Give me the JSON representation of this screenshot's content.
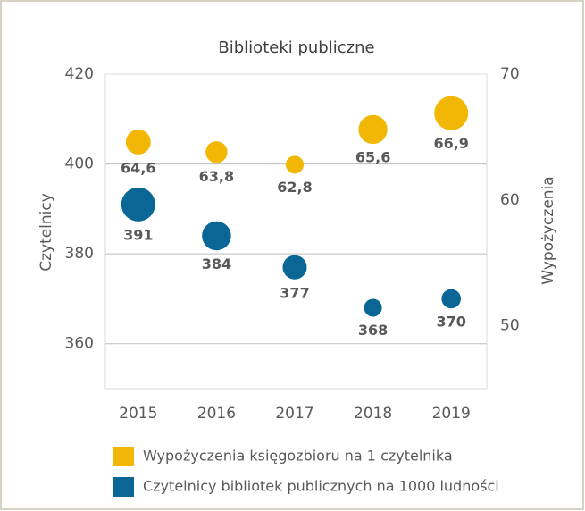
{
  "chart_data": {
    "type": "bubble",
    "title": "Biblioteki publiczne",
    "ylabel": "Czytelnicy",
    "y2label": "Wypożyczenia",
    "categories": [
      "2015",
      "2016",
      "2017",
      "2018",
      "2019"
    ],
    "ylim": [
      350,
      420
    ],
    "yticks": [
      360,
      380,
      400,
      420
    ],
    "y2lim": [
      45,
      70
    ],
    "y2ticks": [
      50,
      60,
      70
    ],
    "grid": true,
    "legend": "bottom",
    "series": [
      {
        "name": "Wypożyczenia księgozbioru na 1 czytelnika",
        "color": "#f2b705",
        "axis": "y2",
        "values": [
          64.6,
          63.8,
          62.8,
          65.6,
          66.9
        ],
        "value_labels": [
          "64,6",
          "63,8",
          "62,8",
          "65,6",
          "66,9"
        ]
      },
      {
        "name": "Czytelnicy bibliotek publicznych na 1000 ludności",
        "color": "#0a6795",
        "values": [
          391,
          384,
          377,
          368,
          370
        ]
      }
    ]
  }
}
